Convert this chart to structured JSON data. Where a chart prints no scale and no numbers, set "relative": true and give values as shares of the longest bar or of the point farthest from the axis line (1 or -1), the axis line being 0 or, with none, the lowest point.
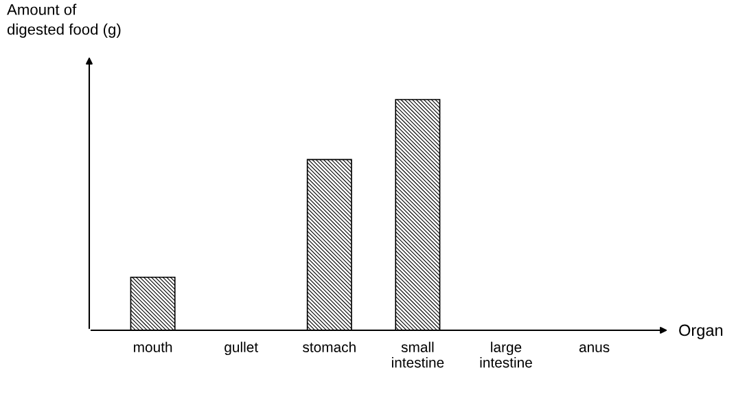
{
  "chart_data": {
    "type": "bar",
    "relative": true,
    "ylabel": "Amount of\ndigested food (g)",
    "xlabel": "Organ",
    "categories": [
      "mouth",
      "gullet",
      "stomach",
      "small intestine",
      "large intestine",
      "anus"
    ],
    "values": [
      0.23,
      0,
      0.74,
      1.0,
      0,
      0
    ],
    "color": "#000000",
    "grid": false,
    "legend": false
  }
}
